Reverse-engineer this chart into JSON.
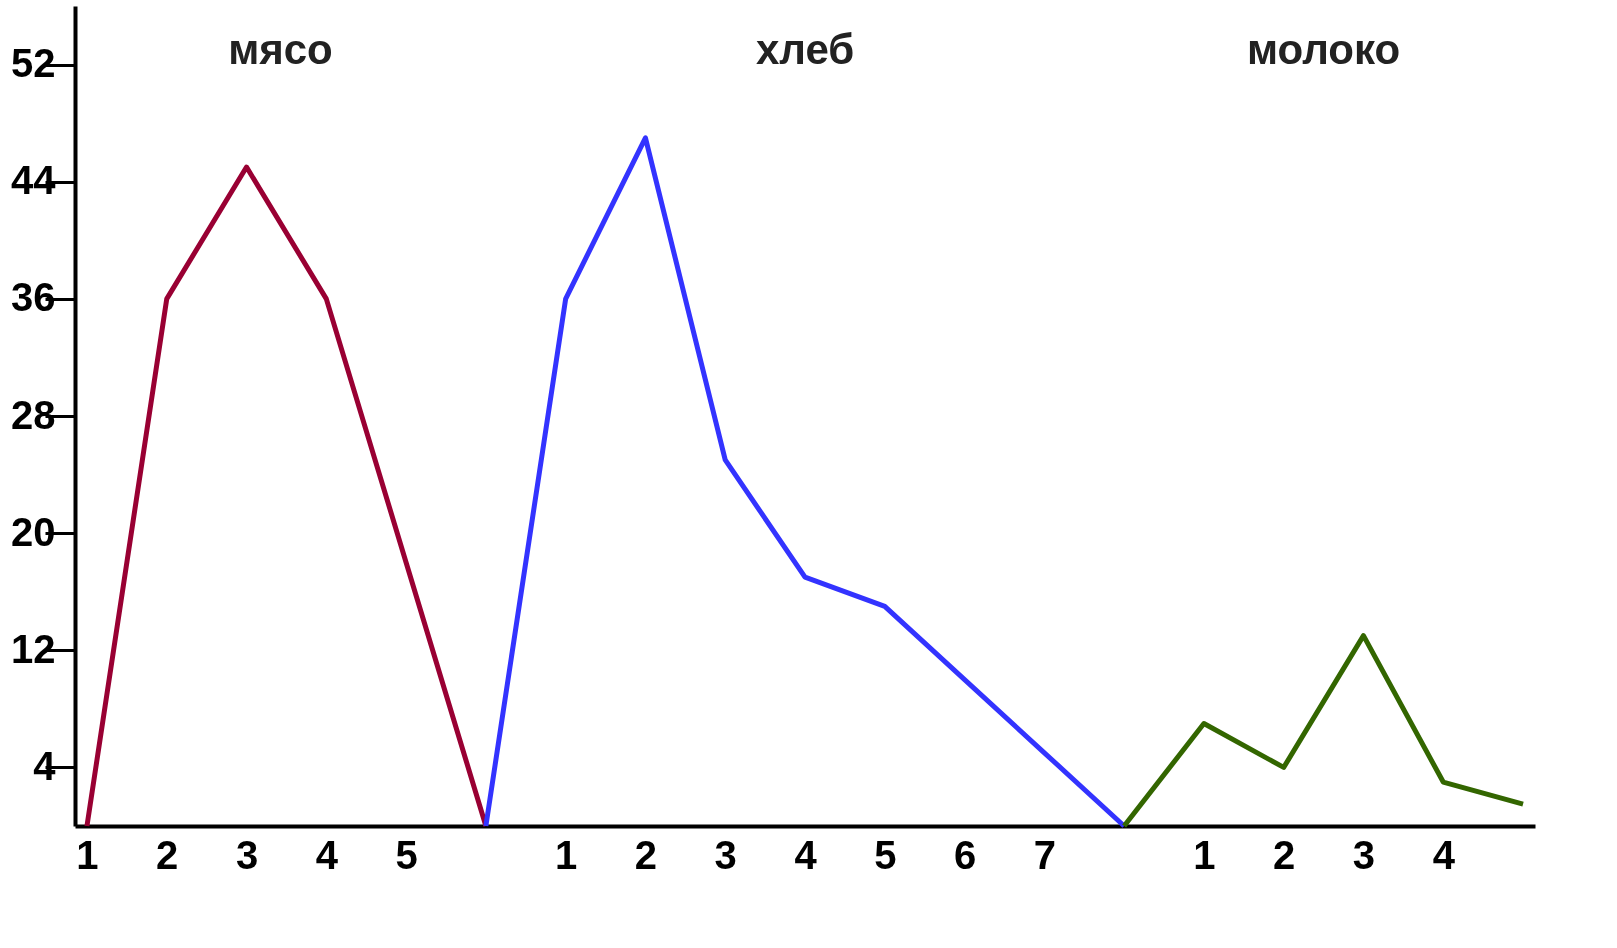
{
  "chart_data": {
    "type": "line",
    "categories": [
      "1",
      "2",
      "3",
      "4",
      "5",
      null,
      "1",
      "2",
      "3",
      "4",
      "5",
      "6",
      "7",
      null,
      "1",
      "2",
      "3",
      "4",
      null
    ],
    "series": [
      {
        "color": "#990033",
        "values": [
          0,
          36,
          45,
          36,
          18,
          0,
          null,
          null,
          null,
          null,
          null,
          null,
          null,
          null,
          null,
          null,
          null,
          null,
          null
        ]
      },
      {
        "color": "#3333ff",
        "values": [
          null,
          null,
          null,
          null,
          null,
          0,
          36,
          47,
          25,
          17,
          15,
          10,
          5,
          0,
          null,
          null,
          null,
          null,
          null
        ]
      },
      {
        "color": "#336600",
        "values": [
          null,
          null,
          null,
          null,
          null,
          null,
          null,
          null,
          null,
          null,
          null,
          null,
          null,
          0,
          7,
          4,
          13,
          3,
          1.5
        ]
      }
    ],
    "annotations": [
      "мясо",
      "хлеб",
      "молоко"
    ],
    "ylim": [
      0,
      56
    ],
    "yticks": [
      4,
      12,
      20,
      28,
      36,
      44,
      52
    ],
    "grid": false,
    "marker": "none",
    "line_style": "solid"
  }
}
